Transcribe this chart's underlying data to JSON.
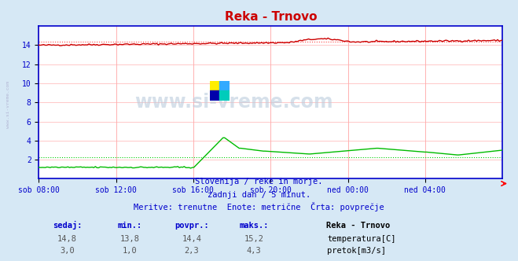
{
  "title": "Reka - Trnovo",
  "bg_color": "#d6e8f5",
  "plot_bg_color": "#ffffff",
  "grid_color": "#ffaaaa",
  "axis_color": "#0000cc",
  "title_color": "#cc0000",
  "subtitle_lines": [
    "Slovenija / reke in morje.",
    "zadnji dan / 5 minut.",
    "Meritve: trenutne  Enote: metrične  Črta: povprečje"
  ],
  "xlabel_ticks": [
    "sob 08:00",
    "sob 12:00",
    "sob 16:00",
    "sob 20:00",
    "ned 00:00",
    "ned 04:00"
  ],
  "xlabel_tick_positions": [
    0.0,
    0.167,
    0.333,
    0.5,
    0.667,
    0.833
  ],
  "ylim": [
    0,
    16
  ],
  "yticks": [
    2,
    4,
    6,
    8,
    10,
    12,
    14
  ],
  "temp_avg": 14.4,
  "flow_avg": 2.3,
  "watermark_text": "www.si-vreme.com",
  "table_headers": [
    "sedaj:",
    "min.:",
    "povpr.:",
    "maks.:"
  ],
  "table_col1": [
    "14,8",
    "3,0"
  ],
  "table_col2": [
    "13,8",
    "1,0"
  ],
  "table_col3": [
    "14,4",
    "2,3"
  ],
  "table_col4": [
    "15,2",
    "4,3"
  ],
  "legend_title": "Reka - Trnovo",
  "legend_items": [
    "temperatura[C]",
    "pretok[m3/s]"
  ],
  "legend_colors": [
    "#cc0000",
    "#00aa00"
  ],
  "temp_color": "#cc0000",
  "flow_color": "#00bb00",
  "temp_avg_color": "#ff4444",
  "flow_avg_color": "#00cc00",
  "left_label": "www.si-vreme.com"
}
